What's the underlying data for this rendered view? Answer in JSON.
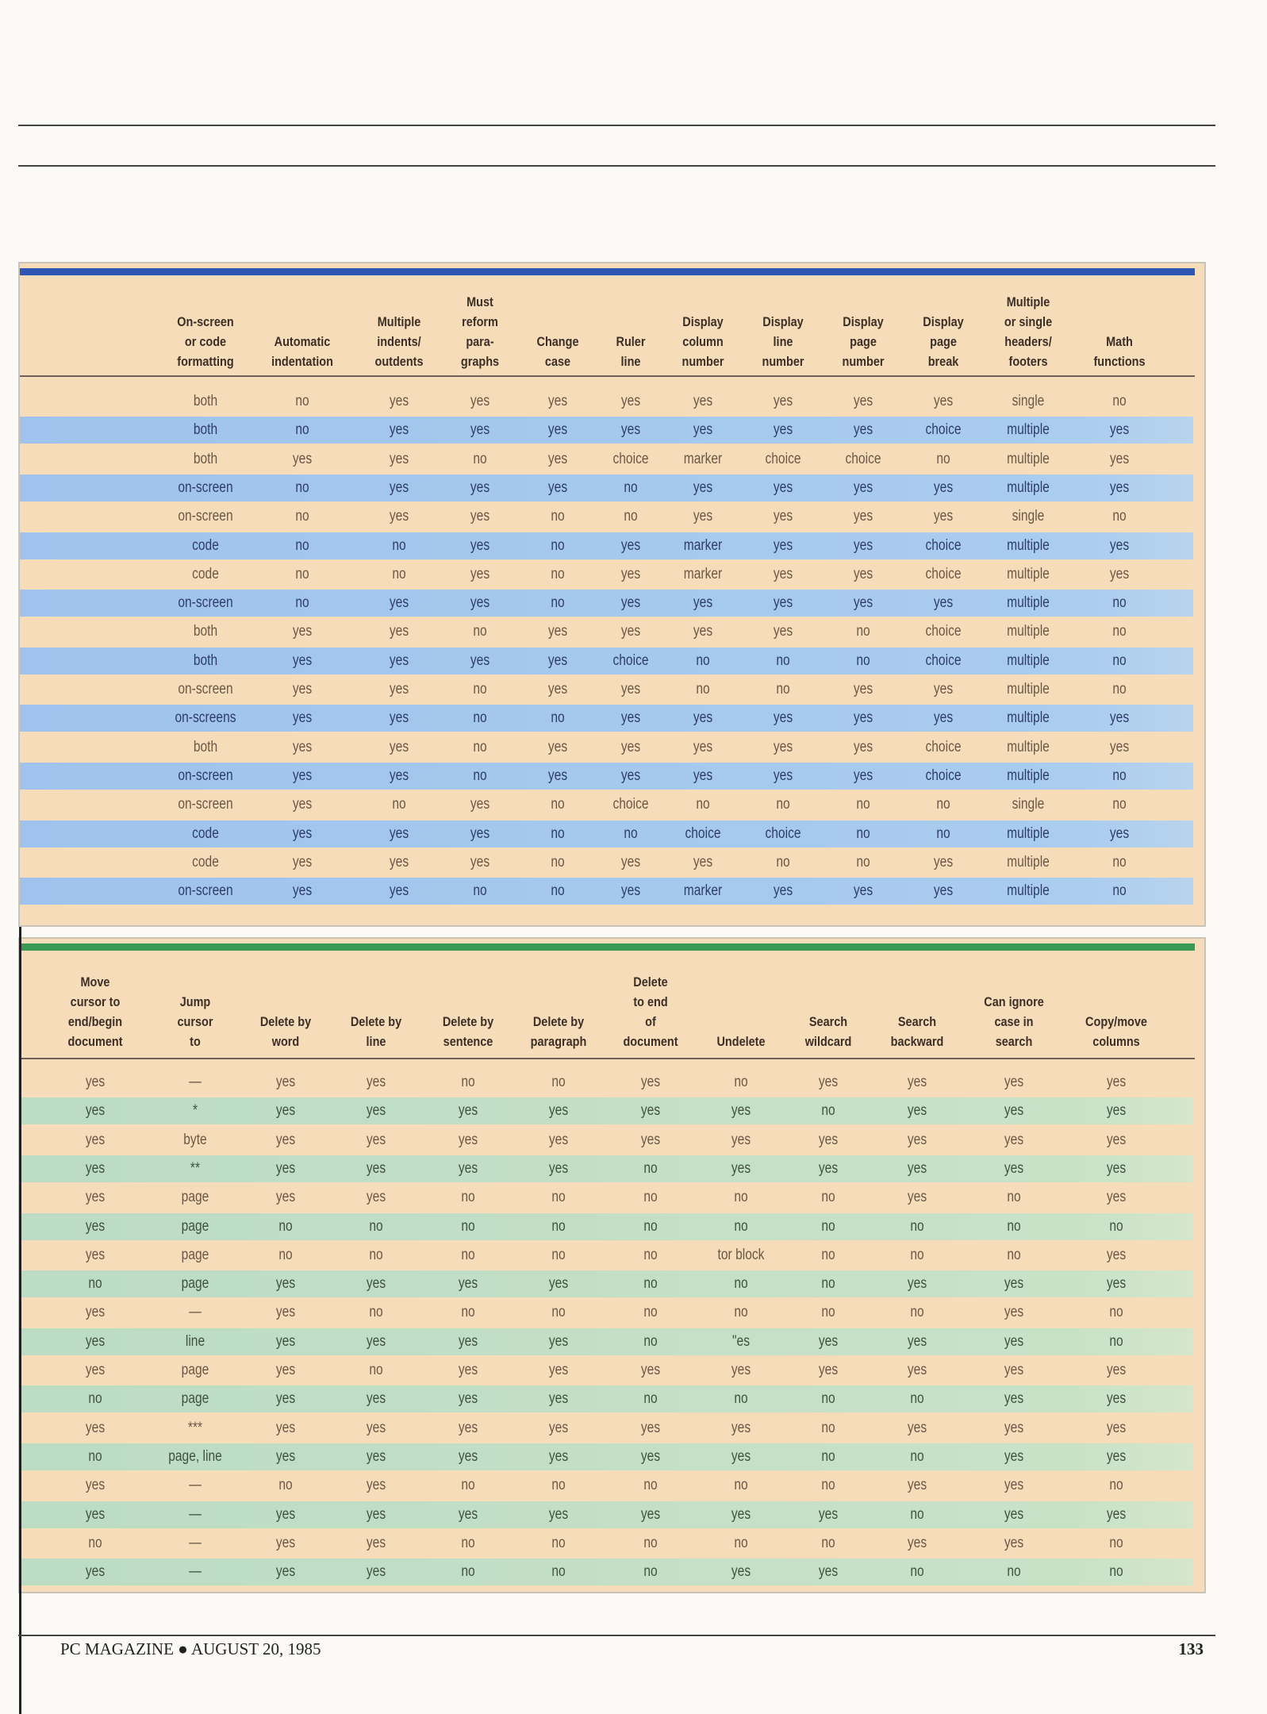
{
  "colors": {
    "top_bar": "#2f56b3",
    "top_band": "#a9ccef",
    "bottom_bar": "#3a9a55",
    "bottom_band": "#c8e2c8",
    "paper": "#f6dcb9"
  },
  "top_table": {
    "headers": [
      "On-screen\nor code\nformatting",
      "Automatic\nindentation",
      "Multiple\nindents/\noutdents",
      "Must\nreform\npara-\ngraphs",
      "Change\ncase",
      "Ruler\nline",
      "Display\ncolumn\nnumber",
      "Display\nline\nnumber",
      "Display\npage\nnumber",
      "Display\npage\nbreak",
      "Multiple\nor single\nheaders/\nfooters",
      "Math\nfunctions"
    ],
    "rows": [
      [
        "both",
        "no",
        "yes",
        "yes",
        "yes",
        "yes",
        "yes",
        "yes",
        "yes",
        "yes",
        "single",
        "no"
      ],
      [
        "both",
        "no",
        "yes",
        "yes",
        "yes",
        "yes",
        "yes",
        "yes",
        "yes",
        "choice",
        "multiple",
        "yes"
      ],
      [
        "both",
        "yes",
        "yes",
        "no",
        "yes",
        "choice",
        "marker",
        "choice",
        "choice",
        "no",
        "multiple",
        "yes"
      ],
      [
        "on-screen",
        "no",
        "yes",
        "yes",
        "yes",
        "no",
        "yes",
        "yes",
        "yes",
        "yes",
        "multiple",
        "yes"
      ],
      [
        "on-screen",
        "no",
        "yes",
        "yes",
        "no",
        "no",
        "yes",
        "yes",
        "yes",
        "yes",
        "single",
        "no"
      ],
      [
        "code",
        "no",
        "no",
        "yes",
        "no",
        "yes",
        "marker",
        "yes",
        "yes",
        "choice",
        "multiple",
        "yes"
      ],
      [
        "code",
        "no",
        "no",
        "yes",
        "no",
        "yes",
        "marker",
        "yes",
        "yes",
        "choice",
        "multiple",
        "yes"
      ],
      [
        "on-screen",
        "no",
        "yes",
        "yes",
        "no",
        "yes",
        "yes",
        "yes",
        "yes",
        "yes",
        "multiple",
        "no"
      ],
      [
        "both",
        "yes",
        "yes",
        "no",
        "yes",
        "yes",
        "yes",
        "yes",
        "no",
        "choice",
        "multiple",
        "no"
      ],
      [
        "both",
        "yes",
        "yes",
        "yes",
        "yes",
        "choice",
        "no",
        "no",
        "no",
        "choice",
        "multiple",
        "no"
      ],
      [
        "on-screen",
        "yes",
        "yes",
        "no",
        "yes",
        "yes",
        "no",
        "no",
        "yes",
        "yes",
        "multiple",
        "no"
      ],
      [
        "on-screens",
        "yes",
        "yes",
        "no",
        "no",
        "yes",
        "yes",
        "yes",
        "yes",
        "yes",
        "multiple",
        "yes"
      ],
      [
        "both",
        "yes",
        "yes",
        "no",
        "yes",
        "yes",
        "yes",
        "yes",
        "yes",
        "choice",
        "multiple",
        "yes"
      ],
      [
        "on-screen",
        "yes",
        "yes",
        "no",
        "yes",
        "yes",
        "yes",
        "yes",
        "yes",
        "choice",
        "multiple",
        "no"
      ],
      [
        "on-screen",
        "yes",
        "no",
        "yes",
        "no",
        "choice",
        "no",
        "no",
        "no",
        "no",
        "single",
        "no"
      ],
      [
        "code",
        "yes",
        "yes",
        "yes",
        "no",
        "no",
        "choice",
        "choice",
        "no",
        "no",
        "multiple",
        "yes"
      ],
      [
        "code",
        "yes",
        "yes",
        "yes",
        "no",
        "yes",
        "yes",
        "no",
        "no",
        "yes",
        "multiple",
        "no"
      ],
      [
        "on-screen",
        "yes",
        "yes",
        "no",
        "no",
        "yes",
        "marker",
        "yes",
        "yes",
        "yes",
        "multiple",
        "no"
      ]
    ]
  },
  "bottom_table": {
    "headers": [
      "Move\ncursor to\nend/begin\ndocument",
      "Jump\ncursor\nto",
      "Delete by\nword",
      "Delete by\nline",
      "Delete by\nsentence",
      "Delete by\nparagraph",
      "Delete\nto end\nof\ndocument",
      "Undelete",
      "Search\nwildcard",
      "Search\nbackward",
      "Can ignore\ncase in\nsearch",
      "Copy/move\ncolumns"
    ],
    "rows": [
      [
        "yes",
        "—",
        "yes",
        "yes",
        "no",
        "no",
        "yes",
        "no",
        "yes",
        "yes",
        "yes",
        "yes"
      ],
      [
        "yes",
        "*",
        "yes",
        "yes",
        "yes",
        "yes",
        "yes",
        "yes",
        "no",
        "yes",
        "yes",
        "yes"
      ],
      [
        "yes",
        "byte",
        "yes",
        "yes",
        "yes",
        "yes",
        "yes",
        "yes",
        "yes",
        "yes",
        "yes",
        "yes"
      ],
      [
        "yes",
        "**",
        "yes",
        "yes",
        "yes",
        "yes",
        "no",
        "yes",
        "yes",
        "yes",
        "yes",
        "yes"
      ],
      [
        "yes",
        "page",
        "yes",
        "yes",
        "no",
        "no",
        "no",
        "no",
        "no",
        "yes",
        "no",
        "yes"
      ],
      [
        "yes",
        "page",
        "no",
        "no",
        "no",
        "no",
        "no",
        "no",
        "no",
        "no",
        "no",
        "no"
      ],
      [
        "yes",
        "page",
        "no",
        "no",
        "no",
        "no",
        "no",
        "tor block",
        "no",
        "no",
        "no",
        "yes"
      ],
      [
        "no",
        "page",
        "yes",
        "yes",
        "yes",
        "yes",
        "no",
        "no",
        "no",
        "yes",
        "yes",
        "yes"
      ],
      [
        "yes",
        "—",
        "yes",
        "no",
        "no",
        "no",
        "no",
        "no",
        "no",
        "no",
        "yes",
        "no"
      ],
      [
        "yes",
        "line",
        "yes",
        "yes",
        "yes",
        "yes",
        "no",
        "\"es",
        "yes",
        "yes",
        "yes",
        "no"
      ],
      [
        "yes",
        "page",
        "yes",
        "no",
        "yes",
        "yes",
        "yes",
        "yes",
        "yes",
        "yes",
        "yes",
        "yes"
      ],
      [
        "no",
        "page",
        "yes",
        "yes",
        "yes",
        "yes",
        "no",
        "no",
        "no",
        "no",
        "yes",
        "yes"
      ],
      [
        "yes",
        "***",
        "yes",
        "yes",
        "yes",
        "yes",
        "yes",
        "yes",
        "no",
        "yes",
        "yes",
        "yes"
      ],
      [
        "no",
        "page, line",
        "yes",
        "yes",
        "yes",
        "yes",
        "yes",
        "yes",
        "no",
        "no",
        "yes",
        "yes"
      ],
      [
        "yes",
        "—",
        "no",
        "yes",
        "no",
        "no",
        "no",
        "no",
        "no",
        "yes",
        "yes",
        "no"
      ],
      [
        "yes",
        "—",
        "yes",
        "yes",
        "yes",
        "yes",
        "yes",
        "yes",
        "yes",
        "no",
        "yes",
        "yes"
      ],
      [
        "no",
        "—",
        "yes",
        "yes",
        "no",
        "no",
        "no",
        "no",
        "no",
        "yes",
        "yes",
        "no"
      ],
      [
        "yes",
        "—",
        "yes",
        "yes",
        "no",
        "no",
        "no",
        "yes",
        "yes",
        "no",
        "no",
        "no"
      ]
    ]
  },
  "footer": {
    "publication": "PC MAGAZINE ● AUGUST 20, 1985",
    "page_number": "133"
  }
}
